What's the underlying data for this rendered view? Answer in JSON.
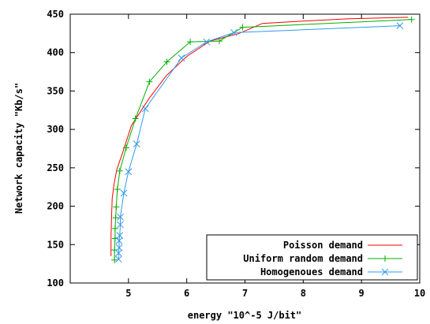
{
  "chart_data": {
    "type": "line",
    "xlabel": "energy \"10^-5 J/bit\"",
    "ylabel": "Network capacity \"Kb/s\"",
    "xlim": [
      4,
      10
    ],
    "ylim": [
      100,
      450
    ],
    "xticks": [
      "5",
      "6",
      "7",
      "8",
      "9",
      "10"
    ],
    "yticks": [
      "100",
      "150",
      "200",
      "250",
      "300",
      "350",
      "400",
      "450"
    ],
    "grid": false,
    "legend_position": "bottom-right",
    "series": [
      {
        "name": "Poisson demand",
        "color": "#ff0000",
        "marker": "none",
        "x": [
          4.7,
          4.7,
          4.71,
          4.72,
          4.75,
          4.8,
          4.9,
          5.05,
          5.35,
          5.65,
          6.0,
          6.4,
          6.9,
          7.3,
          8.0,
          8.8,
          9.8
        ],
        "y": [
          135,
          160,
          185,
          210,
          228,
          248,
          270,
          305,
          340,
          370,
          395,
          415,
          425,
          438,
          441,
          444,
          446
        ]
      },
      {
        "name": "Uniform random demand",
        "color": "#00b000",
        "marker": "plus",
        "x": [
          4.76,
          4.76,
          4.77,
          4.77,
          4.78,
          4.79,
          4.81,
          4.85,
          4.96,
          5.12,
          5.36,
          5.66,
          6.06,
          6.56,
          6.96,
          9.86
        ],
        "y": [
          130,
          143,
          158,
          171,
          185,
          199,
          222,
          246,
          276,
          314,
          362,
          388,
          414,
          415,
          433,
          443
        ]
      },
      {
        "name": "Homogenoues demand",
        "color": "#3399ee",
        "marker": "x",
        "x": [
          4.83,
          4.83,
          4.84,
          4.84,
          4.85,
          4.86,
          4.86,
          4.92,
          5.0,
          5.14,
          5.29,
          5.91,
          6.34,
          6.81,
          9.66
        ],
        "y": [
          131,
          139,
          146,
          155,
          162,
          176,
          186,
          217,
          245,
          281,
          327,
          393,
          414,
          426,
          435
        ]
      }
    ]
  }
}
